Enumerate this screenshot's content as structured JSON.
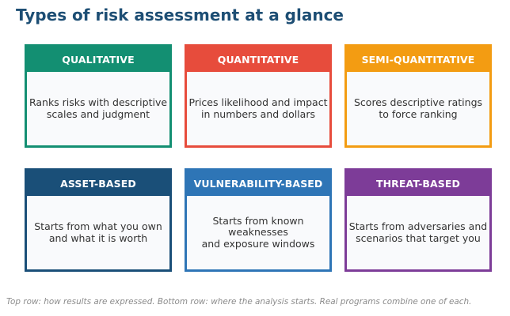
{
  "title": "Types of risk assessment at a glance",
  "cards": [
    {
      "heading": "QUALITATIVE",
      "description": "Ranks risks with descriptive\nscales and judgment",
      "color": "#138f72"
    },
    {
      "heading": "QUANTITATIVE",
      "description": "Prices likelihood and impact\nin numbers and dollars",
      "color": "#e74c3c"
    },
    {
      "heading": "SEMI-QUANTITATIVE",
      "description": "Scores descriptive ratings\nto force ranking",
      "color": "#f39c12"
    },
    {
      "heading": "ASSET-BASED",
      "description": "Starts from what you own\nand what it is worth",
      "color": "#1a4f78"
    },
    {
      "heading": "VULNERABILITY-BASED",
      "description": "Starts from known weaknesses\nand exposure windows",
      "color": "#2e75b6"
    },
    {
      "heading": "THREAT-BASED",
      "description": "Starts from adversaries and\nscenarios that target you",
      "color": "#7d3c98"
    }
  ],
  "footnote": "Top row: how results are expressed. Bottom row: where the analysis starts. Real programs combine one of each."
}
